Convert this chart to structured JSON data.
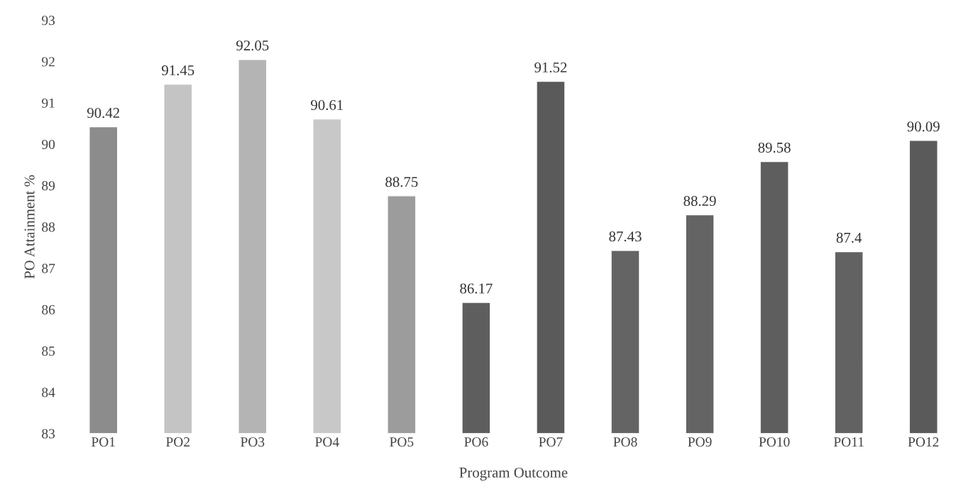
{
  "chart_data": {
    "type": "bar",
    "xlabel": "Program Outcome",
    "ylabel": "PO Attainment %",
    "categories": [
      "PO1",
      "PO2",
      "PO3",
      "PO4",
      "PO5",
      "PO6",
      "PO7",
      "PO8",
      "PO9",
      "PO10",
      "PO11",
      "PO12"
    ],
    "values": [
      90.42,
      91.45,
      92.05,
      90.61,
      88.75,
      86.17,
      91.52,
      87.43,
      88.29,
      89.58,
      87.4,
      90.09
    ],
    "colors": [
      "#8c8c8c",
      "#c4c4c4",
      "#b4b4b4",
      "#c8c8c8",
      "#9c9c9c",
      "#5e5e5e",
      "#5a5a5a",
      "#646464",
      "#646464",
      "#5e5e5e",
      "#626262",
      "#5a5a5a"
    ],
    "ylim": [
      83,
      93
    ],
    "yticks": [
      83,
      84,
      85,
      86,
      87,
      88,
      89,
      90,
      91,
      92,
      93
    ],
    "data_labels": true,
    "grid": false,
    "legend": false
  }
}
